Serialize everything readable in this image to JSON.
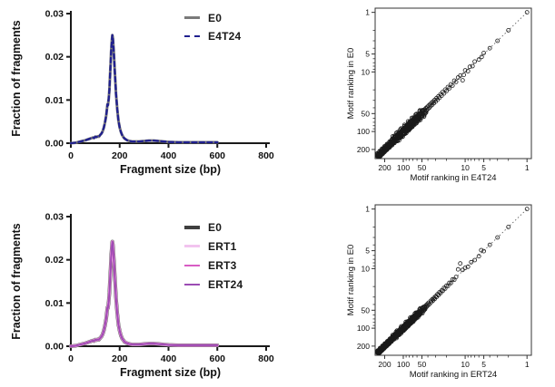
{
  "figure": {
    "background": "#ffffff"
  },
  "chart_data": [
    {
      "id": "fragment-size-e4t24",
      "type": "line",
      "xlabel": "Fragment size (bp)",
      "ylabel": "Fraction of fragments",
      "xlim": [
        0,
        800
      ],
      "ylim": [
        0,
        0.03
      ],
      "xticks": [
        0,
        200,
        400,
        600,
        800
      ],
      "yticks": [
        "0.00",
        "0.01",
        "0.02",
        "0.03"
      ],
      "x": [
        0,
        20,
        40,
        60,
        80,
        90,
        95,
        100,
        105,
        110,
        115,
        120,
        125,
        130,
        135,
        140,
        145,
        150,
        152,
        155,
        158,
        160,
        163,
        165,
        168,
        170,
        172,
        175,
        178,
        180,
        183,
        185,
        190,
        195,
        200,
        205,
        210,
        215,
        220,
        230,
        240,
        250,
        260,
        280,
        300,
        320,
        340,
        360,
        380,
        400,
        440,
        480,
        520,
        560,
        600
      ],
      "y": [
        0,
        0.0001,
        0.0004,
        0.0007,
        0.0011,
        0.0013,
        0.0012,
        0.0015,
        0.0014,
        0.0016,
        0.0015,
        0.0019,
        0.0022,
        0.0027,
        0.0036,
        0.0048,
        0.0065,
        0.009,
        0.0088,
        0.0103,
        0.0125,
        0.015,
        0.0185,
        0.021,
        0.024,
        0.025,
        0.0245,
        0.022,
        0.019,
        0.0165,
        0.0135,
        0.0115,
        0.0078,
        0.0052,
        0.0036,
        0.0026,
        0.0019,
        0.0014,
        0.0011,
        0.0007,
        0.0005,
        0.0004,
        0.0004,
        0.0004,
        0.0005,
        0.0006,
        0.0006,
        0.0005,
        0.0004,
        0.0003,
        0.0002,
        0.0002,
        0.0002,
        0.0002,
        0.0002
      ],
      "series": [
        {
          "name": "E0",
          "color": "#7a7a7a",
          "width": 3,
          "dash": ""
        },
        {
          "name": "E4T24",
          "color": "#20208f",
          "width": 2.3,
          "dash": "5,3.5"
        }
      ]
    },
    {
      "id": "motif-ranking-e4t24",
      "type": "scatter",
      "xlabel": "Motif ranking in E4T24",
      "ylabel": "Motif ranking in E0",
      "scale": "log-reversed",
      "ticks": [
        1,
        5,
        10,
        50,
        100,
        200
      ],
      "minor_ticks": [
        2,
        3,
        4,
        6,
        7,
        8,
        9,
        20,
        30,
        40,
        60,
        70,
        80,
        90
      ],
      "diagonal": true,
      "points": [
        [
          1,
          1
        ],
        [
          2,
          2
        ],
        [
          3,
          3
        ],
        [
          4,
          4
        ],
        [
          5,
          4.8
        ],
        [
          5.4,
          5.6
        ],
        [
          6,
          6.2
        ],
        [
          7,
          6.7
        ],
        [
          7.6,
          8
        ],
        [
          8.4,
          8.2
        ],
        [
          9,
          9.7
        ],
        [
          10,
          9.4
        ],
        [
          10.5,
          11.2
        ],
        [
          11,
          13.8
        ],
        [
          12,
          11.5
        ],
        [
          13,
          12.4
        ],
        [
          14,
          14.7
        ],
        [
          15,
          14
        ],
        [
          16,
          16.9
        ],
        [
          17,
          16.1
        ],
        [
          18,
          18.8
        ],
        [
          19,
          17.9
        ],
        [
          20,
          20.8
        ],
        [
          21,
          19.8
        ],
        [
          22,
          23
        ],
        [
          23,
          21.7
        ],
        [
          24,
          25
        ],
        [
          25,
          23.6
        ],
        [
          26,
          27.2
        ],
        [
          27,
          25.6
        ],
        [
          28,
          29.3
        ],
        [
          29,
          27.5
        ],
        [
          30,
          31.5
        ],
        [
          31,
          29.4
        ],
        [
          32,
          33.4
        ],
        [
          33,
          31.2
        ],
        [
          34,
          35.6
        ],
        [
          35,
          33
        ],
        [
          36,
          37.5
        ],
        [
          37,
          35
        ],
        [
          38,
          40
        ],
        [
          39,
          36.8
        ],
        [
          40,
          42
        ],
        [
          41,
          38.7
        ],
        [
          42,
          44.2
        ],
        [
          43,
          40.5
        ],
        [
          44,
          46
        ],
        [
          45,
          42.5
        ],
        [
          46,
          48.3
        ],
        [
          47,
          44.4
        ],
        [
          48,
          50.5
        ],
        [
          49,
          46.3
        ],
        [
          50,
          52.8
        ],
        [
          51,
          48
        ],
        [
          52,
          55
        ],
        [
          53,
          50
        ],
        [
          55,
          58
        ],
        [
          56,
          52.5
        ],
        [
          58,
          61
        ],
        [
          59,
          55
        ]
      ],
      "bands": [
        {
          "start": 55,
          "end": 258,
          "count": 230,
          "jitter": 0.06
        },
        {
          "start": 45,
          "end": 140,
          "count": 110,
          "jitter": 0.1
        },
        {
          "start": 140,
          "end": 258,
          "count": 160,
          "jitter": 0.02
        }
      ]
    },
    {
      "id": "fragment-size-ert",
      "type": "line",
      "xlabel": "Fragment size (bp)",
      "ylabel": "Fraction of fragments",
      "xlim": [
        0,
        800
      ],
      "ylim": [
        0,
        0.03
      ],
      "xticks": [
        0,
        200,
        400,
        600,
        800
      ],
      "yticks": [
        "0.00",
        "0.01",
        "0.02",
        "0.03"
      ],
      "x": [
        0,
        20,
        40,
        60,
        80,
        90,
        95,
        100,
        105,
        110,
        115,
        120,
        125,
        130,
        135,
        140,
        145,
        150,
        152,
        155,
        158,
        160,
        163,
        165,
        168,
        170,
        172,
        175,
        178,
        180,
        183,
        185,
        190,
        195,
        200,
        205,
        210,
        215,
        220,
        230,
        240,
        250,
        260,
        280,
        300,
        320,
        340,
        360,
        380,
        400,
        440,
        480,
        520,
        560,
        600
      ],
      "y": [
        0,
        0.0001,
        0.0004,
        0.0007,
        0.0011,
        0.0013,
        0.0012,
        0.0015,
        0.0014,
        0.0016,
        0.0015,
        0.0019,
        0.0022,
        0.0027,
        0.0036,
        0.0048,
        0.0065,
        0.009,
        0.0088,
        0.0103,
        0.0125,
        0.0148,
        0.018,
        0.0205,
        0.0232,
        0.0242,
        0.0236,
        0.0212,
        0.0185,
        0.016,
        0.0132,
        0.0112,
        0.0076,
        0.005,
        0.0035,
        0.0025,
        0.0018,
        0.0014,
        0.001,
        0.0007,
        0.0005,
        0.0004,
        0.0004,
        0.0004,
        0.0005,
        0.0006,
        0.0006,
        0.0005,
        0.0004,
        0.0003,
        0.0002,
        0.0002,
        0.0002,
        0.0002,
        0.0002
      ],
      "series": [
        {
          "name": "E0",
          "color": "#3f3f3f",
          "width": 4,
          "dash": ""
        },
        {
          "name": "ERT1",
          "color": "#f2c4ef",
          "width": 3.2,
          "dash": ""
        },
        {
          "name": "ERT3",
          "color": "#d85cc4",
          "width": 2.4,
          "dash": ""
        },
        {
          "name": "ERT24",
          "color": "#9c4cb4",
          "width": 1.7,
          "dash": ""
        }
      ]
    },
    {
      "id": "motif-ranking-ert24",
      "type": "scatter",
      "xlabel": "Motif ranking in ERT24",
      "ylabel": "Motif ranking in E0",
      "scale": "log-reversed",
      "ticks": [
        1,
        5,
        10,
        50,
        100,
        200
      ],
      "minor_ticks": [
        2,
        3,
        4,
        6,
        7,
        8,
        9,
        20,
        30,
        40,
        60,
        70,
        80,
        90
      ],
      "diagonal": true,
      "points": [
        [
          1,
          1
        ],
        [
          2,
          2
        ],
        [
          3,
          3
        ],
        [
          4,
          4
        ],
        [
          5,
          5.1
        ],
        [
          5.5,
          4.9
        ],
        [
          6,
          6.2
        ],
        [
          7,
          7.2
        ],
        [
          8,
          7.8
        ],
        [
          9,
          9.3
        ],
        [
          10,
          9.7
        ],
        [
          11,
          10.5
        ],
        [
          12,
          8.2
        ],
        [
          13,
          10.3
        ],
        [
          14,
          13.8
        ],
        [
          15,
          15.4
        ],
        [
          16,
          15.2
        ],
        [
          17,
          17.5
        ],
        [
          18,
          17.3
        ],
        [
          19,
          19.6
        ],
        [
          20,
          19.3
        ],
        [
          21,
          21.6
        ],
        [
          22,
          21
        ],
        [
          23,
          23.7
        ],
        [
          24,
          23.2
        ],
        [
          25,
          25.8
        ],
        [
          26,
          25
        ],
        [
          27,
          27.9
        ],
        [
          28,
          27
        ],
        [
          29,
          30
        ],
        [
          30,
          29
        ],
        [
          31,
          32.2
        ],
        [
          32,
          31
        ],
        [
          33,
          34.3
        ],
        [
          34,
          32.8
        ],
        [
          35,
          36.4
        ],
        [
          36,
          34.7
        ],
        [
          38,
          39.6
        ],
        [
          39,
          37.4
        ],
        [
          40,
          41.7
        ],
        [
          41,
          39.5
        ],
        [
          42,
          43.8
        ],
        [
          43,
          41.4
        ],
        [
          44,
          45.8
        ],
        [
          45,
          43.3
        ],
        [
          46,
          47.8
        ],
        [
          47,
          45.2
        ],
        [
          48,
          50
        ],
        [
          49,
          47
        ],
        [
          50,
          52
        ],
        [
          52,
          49.4
        ],
        [
          54,
          56.4
        ],
        [
          55,
          52.6
        ],
        [
          57,
          59.4
        ],
        [
          58,
          55.3
        ],
        [
          60,
          62.5
        ]
      ],
      "bands": [
        {
          "start": 55,
          "end": 258,
          "count": 230,
          "jitter": 0.045
        },
        {
          "start": 45,
          "end": 140,
          "count": 90,
          "jitter": 0.07
        },
        {
          "start": 140,
          "end": 258,
          "count": 160,
          "jitter": 0.018
        }
      ]
    }
  ]
}
